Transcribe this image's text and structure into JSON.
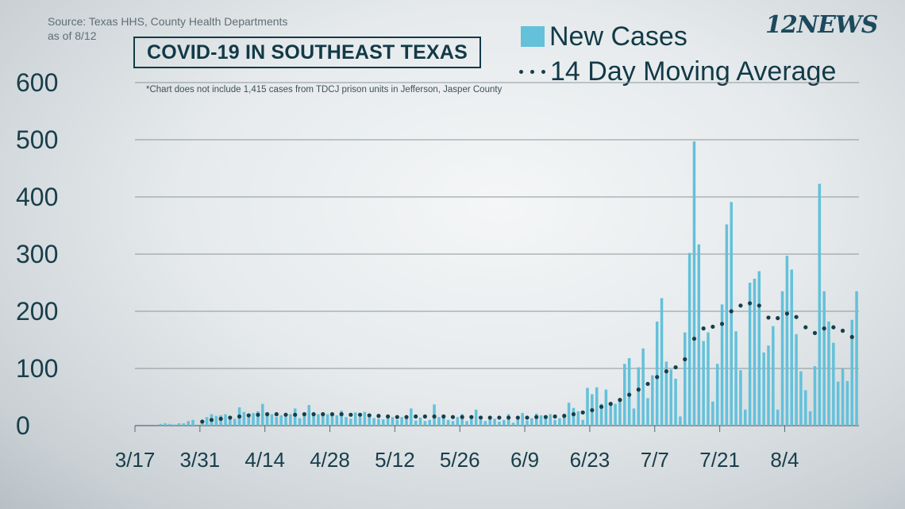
{
  "header": {
    "source_line1": "Source: Texas HHS, County Health Departments",
    "source_line2": "as of 8/12",
    "title": "COVID-19 IN SOUTHEAST TEXAS",
    "footnote": "*Chart does not include 1,415 cases from TDCJ prison units in Jefferson, Jasper County",
    "logo": "12NEWS"
  },
  "colors": {
    "bars": "#63c1da",
    "moving_average": "#183e4a",
    "text": "#123a47",
    "grid": "#8c959a"
  },
  "chart_data": {
    "type": "bar",
    "title": "COVID-19 IN SOUTHEAST TEXAS",
    "xlabel": "",
    "ylabel": "",
    "ylim": [
      0,
      600
    ],
    "yticks": [
      "600",
      "500",
      "400",
      "300",
      "200",
      "100",
      "0"
    ],
    "xticks": [
      "3/17",
      "3/31",
      "4/14",
      "4/28",
      "5/12",
      "5/26",
      "6/9",
      "6/23",
      "7/7",
      "7/21",
      "8/4"
    ],
    "grid": true,
    "legend": {
      "position": "top-right",
      "entries": [
        "New Cases",
        "14 Day Moving Average"
      ]
    },
    "start_date": "3/17",
    "series": [
      {
        "name": "New Cases",
        "type": "bar",
        "values": [
          0,
          0,
          0,
          0,
          0,
          3,
          4,
          3,
          2,
          4,
          4,
          8,
          10,
          0,
          4,
          15,
          20,
          17,
          18,
          20,
          13,
          12,
          32,
          24,
          18,
          22,
          25,
          38,
          18,
          20,
          15,
          18,
          15,
          20,
          30,
          13,
          18,
          36,
          21,
          20,
          23,
          20,
          18,
          18,
          26,
          15,
          12,
          23,
          15,
          24,
          15,
          13,
          12,
          11,
          14,
          15,
          10,
          15,
          12,
          30,
          9,
          14,
          8,
          10,
          37,
          15,
          14,
          10,
          8,
          15,
          20,
          8,
          14,
          28,
          10,
          8,
          14,
          12,
          7,
          10,
          20,
          5,
          15,
          22,
          9,
          13,
          21,
          18,
          12,
          20,
          10,
          13,
          21,
          40,
          31,
          25,
          10,
          66,
          55,
          67,
          38,
          63,
          35,
          38,
          45,
          108,
          118,
          30,
          102,
          135,
          48,
          88,
          182,
          223,
          112,
          98,
          82,
          16,
          163,
          302,
          497,
          317,
          148,
          163,
          42,
          108,
          212,
          352,
          391,
          165,
          97,
          28,
          250,
          257,
          270,
          128,
          140,
          174,
          28,
          235,
          297,
          273,
          160,
          95,
          62,
          25,
          104,
          423,
          235,
          182,
          145,
          77,
          100,
          78,
          185,
          235
        ]
      },
      {
        "name": "14 Day Moving Average",
        "type": "line",
        "values": [
          null,
          null,
          null,
          null,
          null,
          null,
          null,
          null,
          null,
          null,
          null,
          null,
          null,
          5,
          7,
          9,
          10,
          11,
          12,
          13,
          14,
          15,
          16,
          17,
          18,
          19,
          19,
          19,
          20,
          20,
          20,
          20,
          19,
          19,
          19,
          20,
          20,
          20,
          20,
          20,
          20,
          20,
          20,
          20,
          20,
          20,
          19,
          19,
          19,
          18,
          18,
          17,
          17,
          16,
          16,
          16,
          15,
          15,
          15,
          15,
          16,
          16,
          16,
          15,
          16,
          16,
          16,
          16,
          15,
          15,
          15,
          15,
          15,
          15,
          14,
          14,
          14,
          14,
          14,
          14,
          14,
          14,
          14,
          14,
          14,
          15,
          15,
          15,
          15,
          15,
          16,
          16,
          17,
          18,
          20,
          21,
          23,
          25,
          27,
          30,
          33,
          36,
          38,
          41,
          45,
          50,
          54,
          58,
          63,
          68,
          73,
          79,
          85,
          90,
          95,
          98,
          102,
          106,
          116,
          130,
          152,
          165,
          170,
          172,
          173,
          174,
          178,
          184,
          200,
          208,
          210,
          212,
          214,
          218,
          210,
          194,
          189,
          188,
          188,
          190,
          196,
          200,
          190,
          177,
          172,
          168,
          162,
          165,
          170,
          176,
          172,
          168,
          166,
          164,
          155
        ]
      }
    ]
  }
}
